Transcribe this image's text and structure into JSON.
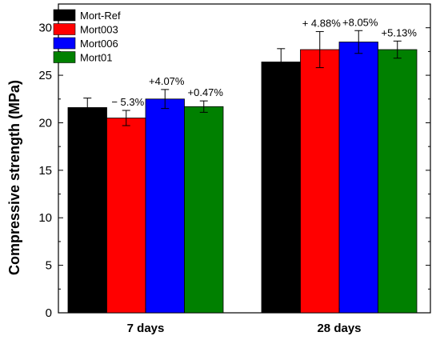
{
  "chart_data": {
    "type": "bar",
    "categories": [
      "7 days",
      "28 days"
    ],
    "series": [
      {
        "name": "Mort-Ref",
        "color": "#000000",
        "values": [
          21.6,
          26.4
        ],
        "errors": [
          1.0,
          1.4
        ]
      },
      {
        "name": "Mort003",
        "color": "#ff0000",
        "values": [
          20.5,
          27.7
        ],
        "errors": [
          0.8,
          1.9
        ]
      },
      {
        "name": "Mort006",
        "color": "#0000ff",
        "values": [
          22.5,
          28.5
        ],
        "errors": [
          1.0,
          1.2
        ]
      },
      {
        "name": "Mort01",
        "color": "#008000",
        "values": [
          21.7,
          27.7
        ],
        "errors": [
          0.6,
          0.9
        ]
      }
    ],
    "annotations": [
      {
        "category": 0,
        "series": 1,
        "text": "− 5.3%"
      },
      {
        "category": 0,
        "series": 2,
        "text": "+4.07%"
      },
      {
        "category": 0,
        "series": 3,
        "text": "+0.47%"
      },
      {
        "category": 1,
        "series": 1,
        "text": "+ 4.88%"
      },
      {
        "category": 1,
        "series": 2,
        "text": "+8.05%"
      },
      {
        "category": 1,
        "series": 3,
        "text": "+5.13%"
      }
    ],
    "title": "",
    "xlabel": "",
    "ylabel": "Compressive strength (MPa)",
    "ylim": [
      0,
      32.5
    ],
    "yticks": [
      0,
      5,
      10,
      15,
      20,
      25,
      30
    ],
    "grid": false,
    "legend_position": "top-left"
  }
}
